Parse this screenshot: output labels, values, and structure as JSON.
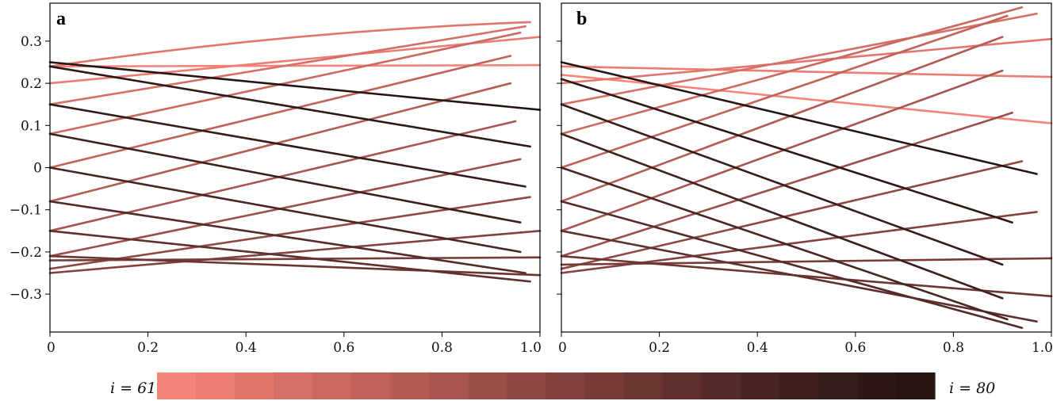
{
  "chart_data": {
    "type": "line",
    "description_panels": [
      "a",
      "b"
    ],
    "x_range": [
      0,
      1.0
    ],
    "y_range": [
      -0.39,
      0.39
    ],
    "x_ticks": [
      0,
      0.2,
      0.4,
      0.6,
      0.8,
      1.0
    ],
    "x_tick_labels": [
      "0",
      "0.2",
      "0.4",
      "0.6",
      "0.8",
      "1.0"
    ],
    "y_ticks": [
      0.3,
      0.2,
      0.1,
      0,
      -0.1,
      -0.2,
      -0.3
    ],
    "y_tick_labels": [
      "0.3",
      "0.2",
      "0.1",
      "0",
      "−0.1",
      "−0.2",
      "−0.3"
    ],
    "colorbar": {
      "min_label": "i = 61",
      "max_label": "i = 80",
      "colors": [
        "#f5857a",
        "#eb7d72",
        "#e0766c",
        "#d66f66",
        "#cb6960",
        "#c0625a",
        "#b45b54",
        "#a9554f",
        "#9c4f49",
        "#904843",
        "#83423d",
        "#773c37",
        "#6b3632",
        "#5f302d",
        "#542b28",
        "#492523",
        "#3f201e",
        "#361c1a",
        "#2e1817",
        "#271514"
      ]
    },
    "panels": [
      {
        "label": "a",
        "series": [
          {
            "color_index": 0,
            "start": 0.24,
            "end": 0.243,
            "end_x": 1.0,
            "curve": 0.0
          },
          {
            "color_index": 1,
            "start": 0.2,
            "end": 0.31,
            "end_x": 1.0,
            "curve": 0.0
          },
          {
            "color_index": 2,
            "start": 0.24,
            "end": 0.345,
            "end_x": 0.98,
            "curve": 0.04
          },
          {
            "color_index": 3,
            "start": 0.15,
            "end": 0.335,
            "end_x": 0.97,
            "curve": 0.0
          },
          {
            "color_index": 4,
            "start": 0.08,
            "end": 0.32,
            "end_x": 0.96,
            "curve": 0.0
          },
          {
            "color_index": 5,
            "start": 0.0,
            "end": 0.265,
            "end_x": 0.94,
            "curve": 0.0
          },
          {
            "color_index": 6,
            "start": -0.08,
            "end": 0.2,
            "end_x": 0.94,
            "curve": 0.0
          },
          {
            "color_index": 7,
            "start": -0.15,
            "end": 0.11,
            "end_x": 0.95,
            "curve": 0.0
          },
          {
            "color_index": 8,
            "start": -0.21,
            "end": 0.02,
            "end_x": 0.96,
            "curve": 0.0
          },
          {
            "color_index": 9,
            "start": -0.24,
            "end": -0.07,
            "end_x": 0.98,
            "curve": 0.0
          },
          {
            "color_index": 10,
            "start": -0.25,
            "end": -0.15,
            "end_x": 1.0,
            "curve": 0.0
          },
          {
            "color_index": 11,
            "start": -0.22,
            "end": -0.213,
            "end_x": 1.0,
            "curve": 0.0
          },
          {
            "color_index": 12,
            "start": -0.21,
            "end": -0.255,
            "end_x": 1.0,
            "curve": 0.0
          },
          {
            "color_index": 13,
            "start": -0.15,
            "end": -0.27,
            "end_x": 0.98,
            "curve": 0.0
          },
          {
            "color_index": 14,
            "start": -0.08,
            "end": -0.25,
            "end_x": 0.97,
            "curve": 0.0
          },
          {
            "color_index": 15,
            "start": 0.0,
            "end": -0.2,
            "end_x": 0.96,
            "curve": 0.0
          },
          {
            "color_index": 16,
            "start": 0.08,
            "end": -0.13,
            "end_x": 0.96,
            "curve": 0.0
          },
          {
            "color_index": 17,
            "start": 0.15,
            "end": -0.045,
            "end_x": 0.97,
            "curve": 0.0
          },
          {
            "color_index": 18,
            "start": 0.24,
            "end": 0.05,
            "end_x": 0.98,
            "curve": 0.0
          },
          {
            "color_index": 19,
            "start": 0.25,
            "end": 0.137,
            "end_x": 1.0,
            "curve": 0.0
          }
        ]
      },
      {
        "label": "b",
        "series": [
          {
            "color_index": 0,
            "start": 0.22,
            "end": 0.105,
            "end_x": 1.0,
            "curve": 0.0
          },
          {
            "color_index": 1,
            "start": 0.24,
            "end": 0.215,
            "end_x": 1.0,
            "curve": 0.0
          },
          {
            "color_index": 2,
            "start": 0.2,
            "end": 0.305,
            "end_x": 1.0,
            "curve": 0.0
          },
          {
            "color_index": 3,
            "start": 0.15,
            "end": 0.365,
            "end_x": 0.97,
            "curve": 0.0
          },
          {
            "color_index": 4,
            "start": 0.08,
            "end": 0.38,
            "end_x": 0.94,
            "curve": 0.0
          },
          {
            "color_index": 5,
            "start": 0.0,
            "end": 0.36,
            "end_x": 0.91,
            "curve": 0.0
          },
          {
            "color_index": 6,
            "start": -0.08,
            "end": 0.31,
            "end_x": 0.9,
            "curve": 0.0
          },
          {
            "color_index": 7,
            "start": -0.15,
            "end": 0.23,
            "end_x": 0.9,
            "curve": 0.0
          },
          {
            "color_index": 8,
            "start": -0.21,
            "end": 0.13,
            "end_x": 0.92,
            "curve": 0.0
          },
          {
            "color_index": 9,
            "start": -0.24,
            "end": 0.015,
            "end_x": 0.94,
            "curve": 0.0
          },
          {
            "color_index": 10,
            "start": -0.25,
            "end": -0.105,
            "end_x": 0.97,
            "curve": 0.0
          },
          {
            "color_index": 11,
            "start": -0.23,
            "end": -0.215,
            "end_x": 1.0,
            "curve": 0.0
          },
          {
            "color_index": 12,
            "start": -0.21,
            "end": -0.305,
            "end_x": 1.0,
            "curve": 0.0
          },
          {
            "color_index": 13,
            "start": -0.15,
            "end": -0.365,
            "end_x": 0.97,
            "curve": 0.0
          },
          {
            "color_index": 14,
            "start": -0.08,
            "end": -0.38,
            "end_x": 0.94,
            "curve": 0.0
          },
          {
            "color_index": 15,
            "start": 0.0,
            "end": -0.36,
            "end_x": 0.91,
            "curve": 0.0
          },
          {
            "color_index": 16,
            "start": 0.08,
            "end": -0.31,
            "end_x": 0.9,
            "curve": 0.0
          },
          {
            "color_index": 17,
            "start": 0.15,
            "end": -0.23,
            "end_x": 0.9,
            "curve": 0.0
          },
          {
            "color_index": 18,
            "start": 0.21,
            "end": -0.13,
            "end_x": 0.92,
            "curve": 0.0
          },
          {
            "color_index": 19,
            "start": 0.25,
            "end": -0.015,
            "end_x": 0.97,
            "curve": 0.0
          }
        ]
      }
    ]
  }
}
